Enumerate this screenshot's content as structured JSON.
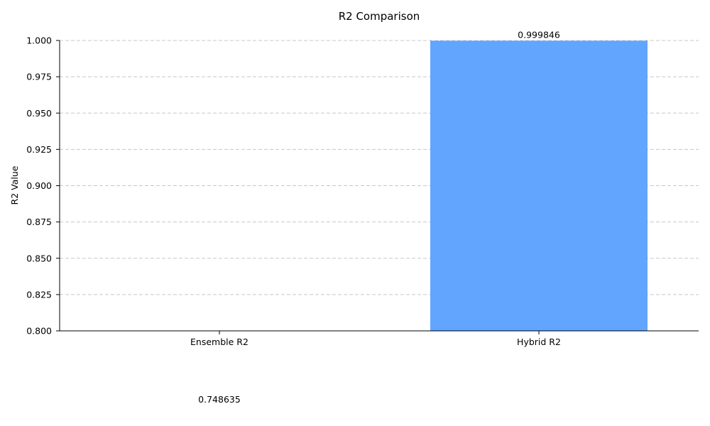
{
  "chart_data": {
    "type": "bar",
    "title": "R2 Comparison",
    "xlabel": "",
    "ylabel": "R2 Value",
    "categories": [
      "Ensemble R2",
      "Hybrid R2"
    ],
    "values": [
      0.748635,
      0.999846
    ],
    "value_labels": [
      "0.748635",
      "0.999846"
    ],
    "ylim": [
      0.8,
      1.0
    ],
    "yticks": [
      0.8,
      0.825,
      0.85,
      0.875,
      0.9,
      0.925,
      0.95,
      0.975,
      1.0
    ],
    "ytick_labels": [
      "0.800",
      "0.825",
      "0.850",
      "0.875",
      "0.900",
      "0.925",
      "0.950",
      "0.975",
      "1.000"
    ],
    "grid": "horizontal-dashed",
    "legend": "none",
    "colors": [
      "#61a5ff",
      "#61a5ff"
    ]
  }
}
